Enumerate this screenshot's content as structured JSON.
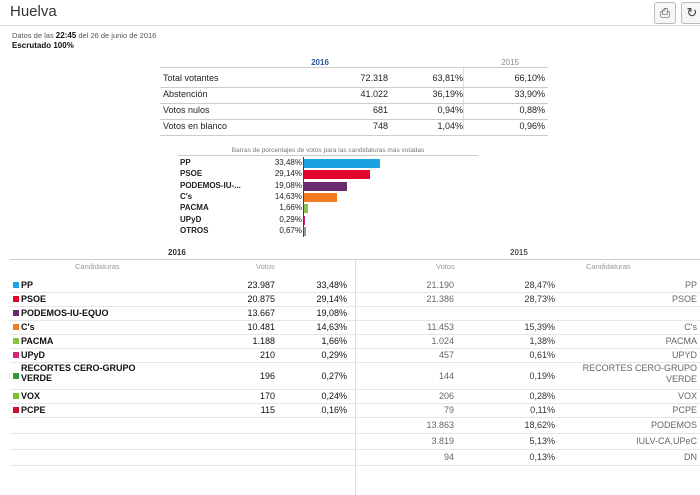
{
  "header": {
    "title": "Huelva",
    "print_label": "⎙",
    "refresh_label": "↻"
  },
  "meta": {
    "prefix": "Datos de las",
    "time": "22:45",
    "suffix": "del 26 de junio de 2016",
    "escrutado": "Escrutado 100%"
  },
  "summary": {
    "year_2016": "2016",
    "year_2015": "2015",
    "rows": [
      {
        "label": "Total votantes",
        "v2016": "72.318",
        "p2016": "63,81%",
        "p2015": "66,10%"
      },
      {
        "label": "Abstención",
        "v2016": "41.022",
        "p2016": "36,19%",
        "p2015": "33,90%"
      },
      {
        "label": "Votos nulos",
        "v2016": "681",
        "p2016": "0,94%",
        "p2015": "0,88%"
      },
      {
        "label": "Votos en blanco",
        "v2016": "748",
        "p2016": "1,04%",
        "p2015": "0,96%"
      }
    ]
  },
  "bars": {
    "title": "Barras de porcentajes de votos para las candidaturas más votadas",
    "items": [
      {
        "name": "PP",
        "pct": "33,48%",
        "value": 33.48,
        "color": "#1aa3e0"
      },
      {
        "name": "PSOE",
        "pct": "29,14%",
        "value": 29.14,
        "color": "#e3052e"
      },
      {
        "name": "PODEMOS-IU-...",
        "pct": "19,08%",
        "value": 19.08,
        "color": "#6a2c70"
      },
      {
        "name": "C's",
        "pct": "14,63%",
        "value": 14.63,
        "color": "#f47b20"
      },
      {
        "name": "PACMA",
        "pct": "1,66%",
        "value": 1.66,
        "color": "#8bc34a"
      },
      {
        "name": "UPyD",
        "pct": "0,29%",
        "value": 0.29,
        "color": "#d4267c"
      },
      {
        "name": "OTROS",
        "pct": "0,67%",
        "value": 0.67,
        "color": "#999999"
      }
    ]
  },
  "results": {
    "year_2016": "2016",
    "year_2015": "2015",
    "headers": {
      "cand_left": "Candidaturas",
      "votos_left": "Votos",
      "votos_right": "Votos",
      "cand_right": "Candidaturas"
    },
    "rows": [
      {
        "party": "PP",
        "color": "#1aa3e0",
        "v2016": "23.987",
        "p2016": "33,48%",
        "v2015": "21.190",
        "p2015": "28,47%",
        "n2015": "PP"
      },
      {
        "party": "PSOE",
        "color": "#e3052e",
        "v2016": "20.875",
        "p2016": "29,14%",
        "v2015": "21.386",
        "p2015": "28,73%",
        "n2015": "PSOE"
      },
      {
        "party": "PODEMOS-IU-EQUO",
        "color": "#6a2c70",
        "v2016": "13.667",
        "p2016": "19,08%",
        "v2015": "",
        "p2015": "",
        "n2015": ""
      },
      {
        "party": "C's",
        "color": "#f47b20",
        "v2016": "10.481",
        "p2016": "14,63%",
        "v2015": "11.453",
        "p2015": "15,39%",
        "n2015": "C's"
      },
      {
        "party": "PACMA",
        "color": "#8bc34a",
        "v2016": "1.188",
        "p2016": "1,66%",
        "v2015": "1.024",
        "p2015": "1,38%",
        "n2015": "PACMA"
      },
      {
        "party": "UPyD",
        "color": "#d4267c",
        "v2016": "210",
        "p2016": "0,29%",
        "v2015": "457",
        "p2015": "0,61%",
        "n2015": "UPYD"
      },
      {
        "party": "RECORTES CERO-GRUPO VERDE",
        "color": "#2e9e3a",
        "v2016": "196",
        "p2016": "0,27%",
        "v2015": "144",
        "p2015": "0,19%",
        "n2015": "RECORTES CERO-GRUPO VERDE"
      },
      {
        "party": "VOX",
        "color": "#7cbf2a",
        "v2016": "170",
        "p2016": "0,24%",
        "v2015": "206",
        "p2015": "0,28%",
        "n2015": "VOX"
      },
      {
        "party": "PCPE",
        "color": "#c8102e",
        "v2016": "115",
        "p2016": "0,16%",
        "v2015": "79",
        "p2015": "0,11%",
        "n2015": "PCPE"
      },
      {
        "party": "",
        "color": "",
        "v2016": "",
        "p2016": "",
        "v2015": "13.863",
        "p2015": "18,62%",
        "n2015": "PODEMOS"
      },
      {
        "party": "",
        "color": "",
        "v2016": "",
        "p2016": "",
        "v2015": "3.819",
        "p2015": "5,13%",
        "n2015": "IULV-CA,UPeC"
      },
      {
        "party": "",
        "color": "",
        "v2016": "",
        "p2016": "",
        "v2015": "94",
        "p2015": "0,13%",
        "n2015": "DN"
      }
    ]
  }
}
